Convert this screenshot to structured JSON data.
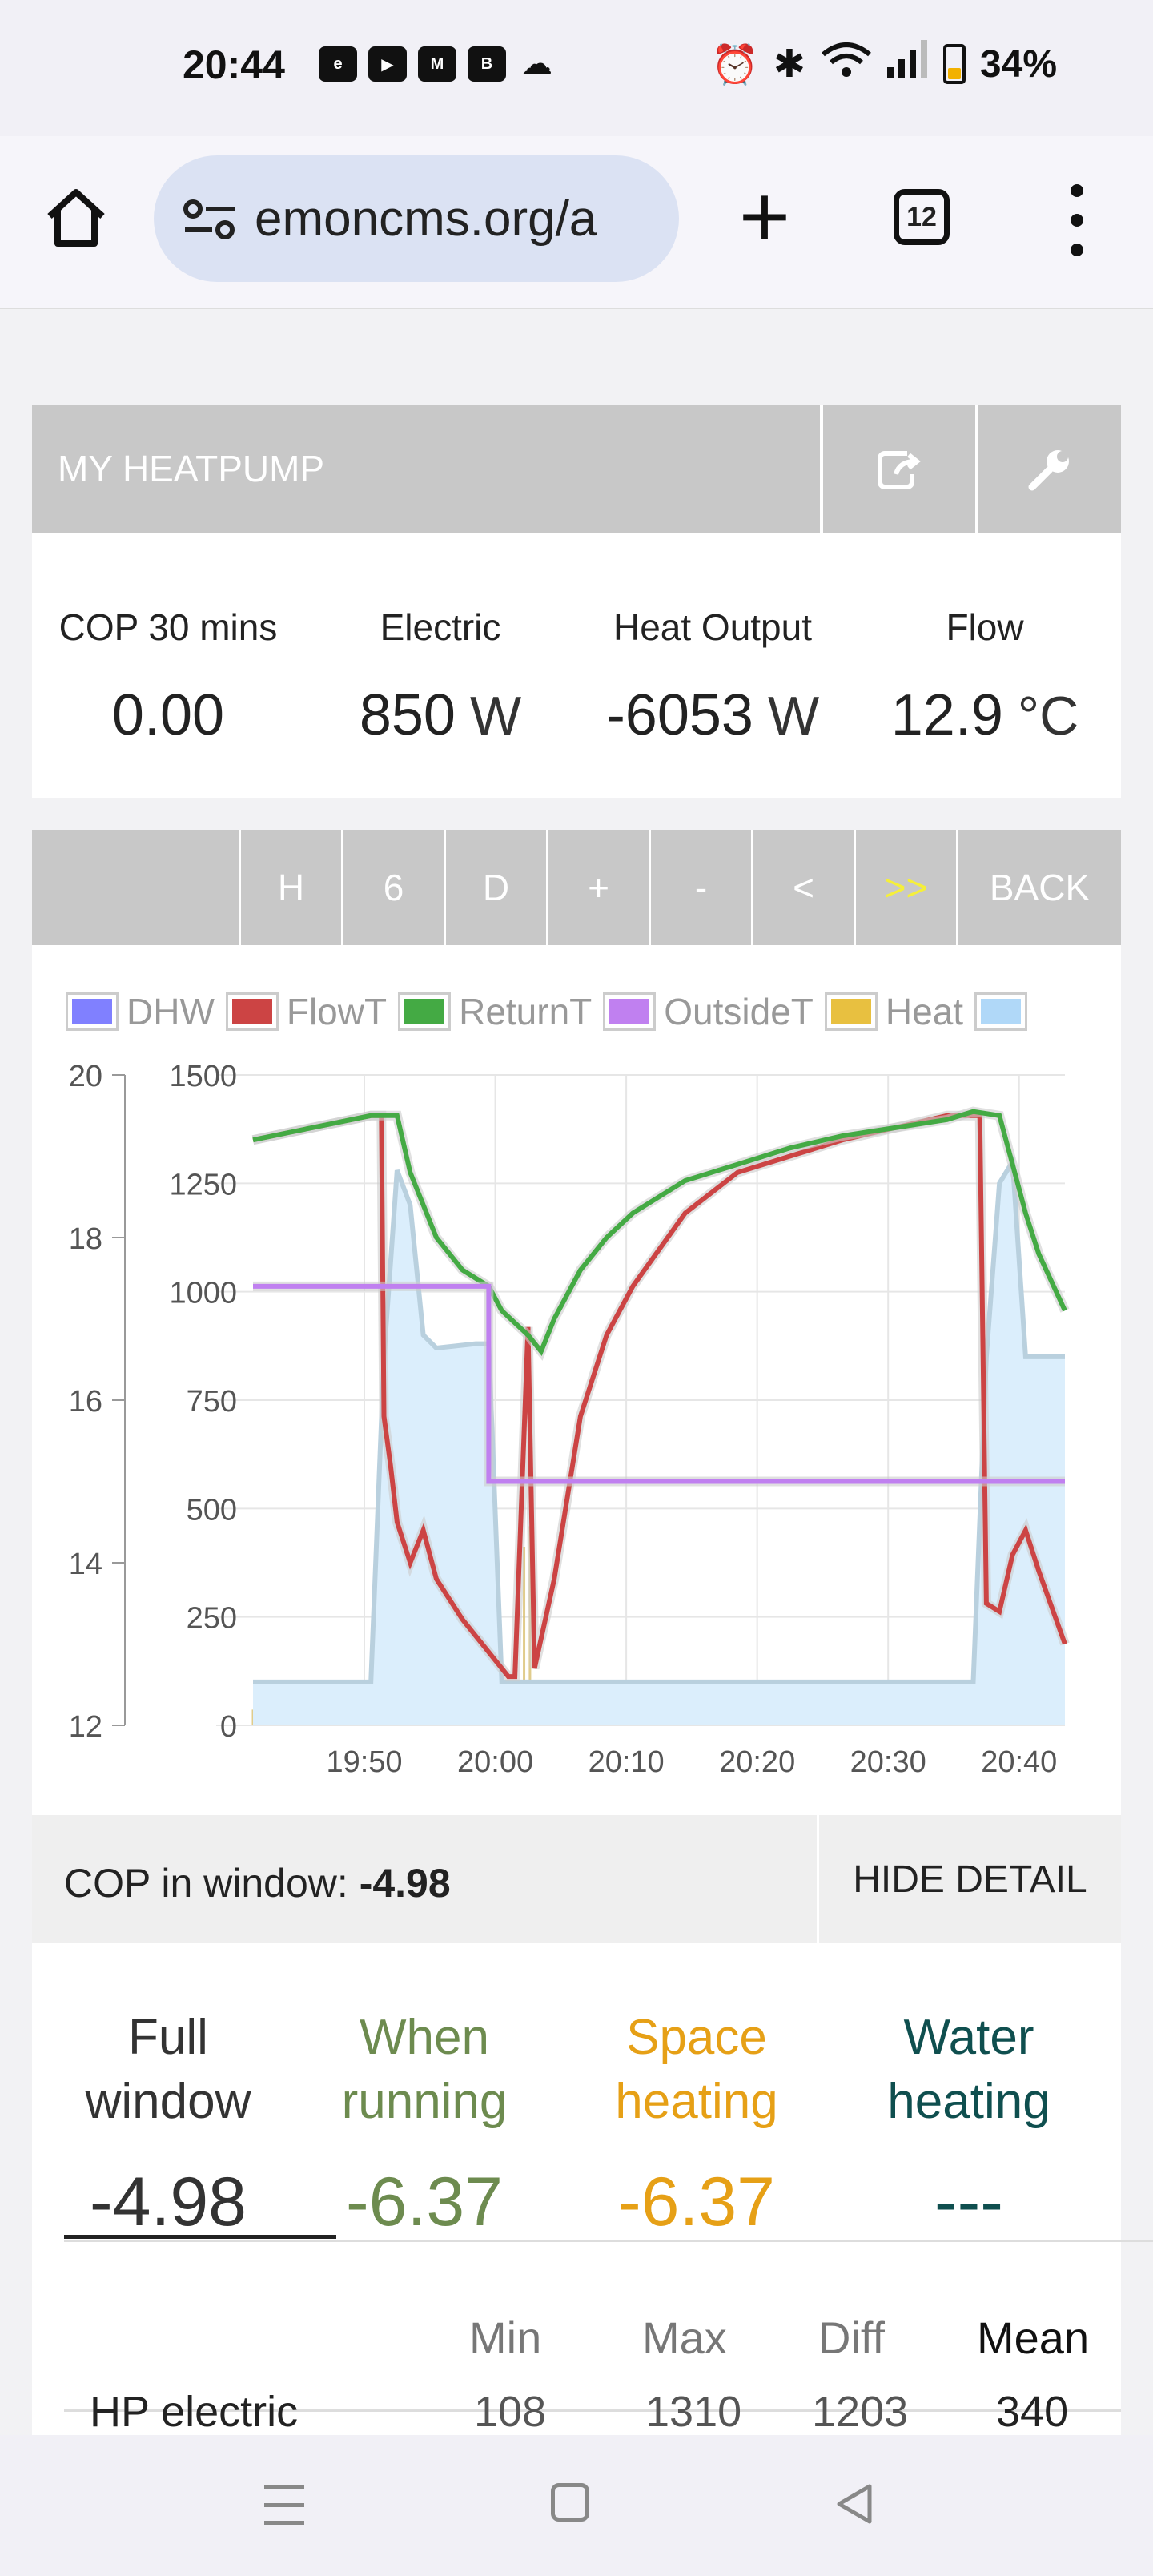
{
  "status": {
    "time": "20:44",
    "left_icons": [
      "ebay-icon",
      "youtube-icon",
      "gmail-icon",
      "b-icon",
      "cloud-icon"
    ],
    "battery_percent": "34%",
    "battery_level": 0.34
  },
  "browser": {
    "url": "emoncms.org/a",
    "tab_count": "12"
  },
  "app": {
    "title": "MY HEATPUMP",
    "stats": [
      {
        "label": "COP 30 mins",
        "value": "0.00",
        "unit": ""
      },
      {
        "label": "Electric",
        "value": "850",
        "unit": "W"
      },
      {
        "label": "Heat Output",
        "value": "-6053",
        "unit": "W"
      },
      {
        "label": "Flow",
        "value": "12.9",
        "unit": "°C"
      }
    ],
    "nav_buttons": [
      "H",
      "6",
      "D",
      "+",
      "-",
      "<",
      ">>",
      "BACK"
    ],
    "cop_window_label": "COP in window: ",
    "cop_window_value": "-4.98",
    "hide_detail": "HIDE DETAIL",
    "modes": [
      {
        "line1": "Full",
        "line2": "window",
        "value": "-4.98",
        "color": "#333333"
      },
      {
        "line1": "When",
        "line2": "running",
        "value": "-6.37",
        "color": "#6d8b4f"
      },
      {
        "line1": "Space",
        "line2": "heating",
        "value": "-6.37",
        "color": "#e6a016"
      },
      {
        "line1": "Water",
        "line2": "heating",
        "value": "---",
        "color": "#0f4f4f"
      }
    ],
    "table_headers": [
      "Min",
      "Max",
      "Diff",
      "Mean"
    ],
    "table_rows": [
      {
        "label": "HP electric",
        "min": "108",
        "max": "1310",
        "diff": "1203",
        "mean": "340"
      }
    ]
  },
  "chart_data": {
    "type": "line",
    "legend": [
      {
        "name": "DHW",
        "color": "#8080ff"
      },
      {
        "name": "FlowT",
        "color": "#cc4444"
      },
      {
        "name": "ReturnT",
        "color": "#44aa44"
      },
      {
        "name": "OutsideT",
        "color": "#c080f0"
      },
      {
        "name": "Heat",
        "color": "#e8c040"
      },
      {
        "name": "",
        "color": "#b0d8f8"
      }
    ],
    "x_ticks": [
      "19:50",
      "20:00",
      "20:10",
      "20:20",
      "20:30",
      "20:40"
    ],
    "y_left_ticks": [
      "20",
      "18",
      "16",
      "14",
      "12"
    ],
    "y_right_ticks": [
      "1500",
      "1250",
      "1000",
      "750",
      "500",
      "250",
      "0"
    ],
    "y_left_range": [
      12,
      20
    ],
    "y_right_range": [
      0,
      1500
    ],
    "x_range_minutes": [
      41,
      103
    ],
    "series": [
      {
        "name": "FlowT",
        "axis": "left",
        "points": [
          [
            41,
            19.2
          ],
          [
            44,
            19.3
          ],
          [
            47,
            19.4
          ],
          [
            50,
            19.5
          ],
          [
            50.8,
            19.5
          ],
          [
            51,
            15.8
          ],
          [
            51.5,
            15.2
          ],
          [
            52,
            14.5
          ],
          [
            53,
            14.0
          ],
          [
            54,
            14.4
          ],
          [
            55,
            13.8
          ],
          [
            57,
            13.3
          ],
          [
            59,
            12.9
          ],
          [
            60.5,
            12.6
          ],
          [
            61,
            12.6
          ],
          [
            62,
            16.9
          ],
          [
            62.5,
            12.7
          ],
          [
            64,
            13.8
          ],
          [
            66,
            15.8
          ],
          [
            68,
            16.8
          ],
          [
            70,
            17.4
          ],
          [
            74,
            18.3
          ],
          [
            78,
            18.8
          ],
          [
            82,
            19.0
          ],
          [
            86,
            19.2
          ],
          [
            90,
            19.35
          ],
          [
            94,
            19.5
          ],
          [
            96.5,
            19.5
          ],
          [
            97,
            13.5
          ],
          [
            98,
            13.4
          ],
          [
            99,
            14.1
          ],
          [
            100,
            14.4
          ],
          [
            101,
            13.9
          ],
          [
            103,
            13.0
          ]
        ]
      },
      {
        "name": "ReturnT",
        "axis": "left",
        "points": [
          [
            41,
            19.2
          ],
          [
            44,
            19.3
          ],
          [
            47,
            19.4
          ],
          [
            50,
            19.5
          ],
          [
            52,
            19.5
          ],
          [
            53,
            18.8
          ],
          [
            55,
            18.0
          ],
          [
            57,
            17.6
          ],
          [
            59,
            17.4
          ],
          [
            60,
            17.1
          ],
          [
            62,
            16.8
          ],
          [
            63,
            16.6
          ],
          [
            64,
            17.0
          ],
          [
            66,
            17.6
          ],
          [
            68,
            18.0
          ],
          [
            70,
            18.3
          ],
          [
            74,
            18.7
          ],
          [
            78,
            18.9
          ],
          [
            82,
            19.1
          ],
          [
            86,
            19.25
          ],
          [
            90,
            19.35
          ],
          [
            94,
            19.45
          ],
          [
            96,
            19.55
          ],
          [
            98,
            19.5
          ],
          [
            99,
            18.9
          ],
          [
            100,
            18.3
          ],
          [
            101,
            17.8
          ],
          [
            103,
            17.1
          ]
        ]
      },
      {
        "name": "OutsideT",
        "axis": "left",
        "points": [
          [
            41,
            17.4
          ],
          [
            59,
            17.4
          ],
          [
            59,
            15.0
          ],
          [
            103,
            15.0
          ]
        ]
      },
      {
        "name": "",
        "axis": "right",
        "fill": true,
        "points": [
          [
            41,
            100
          ],
          [
            50,
            100
          ],
          [
            51,
            850
          ],
          [
            52,
            1280
          ],
          [
            53,
            1200
          ],
          [
            54,
            900
          ],
          [
            55,
            870
          ],
          [
            58,
            880
          ],
          [
            59,
            880
          ],
          [
            60,
            100
          ],
          [
            96,
            100
          ],
          [
            97,
            850
          ],
          [
            98,
            1250
          ],
          [
            99,
            1300
          ],
          [
            100,
            850
          ],
          [
            103,
            850
          ]
        ]
      }
    ]
  }
}
